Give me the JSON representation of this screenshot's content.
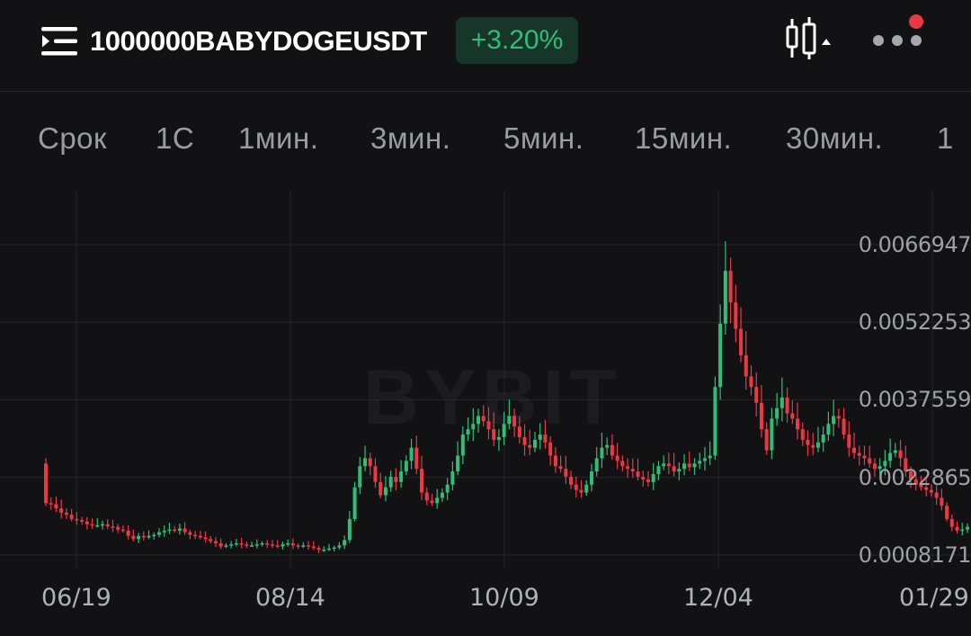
{
  "header": {
    "symbol": "1000000BABYDOGEUSDT",
    "change": "+3.20%",
    "menu_icon": "menu-icon",
    "chart_type_icon": "candlestick-icon",
    "more_icon": "more-dots-icon",
    "notification_color": "#ea3943",
    "up_color": "#2fbd78"
  },
  "timeframes": [
    {
      "label": "Срок"
    },
    {
      "label": "1С"
    },
    {
      "label": "1мин."
    },
    {
      "label": "3мин."
    },
    {
      "label": "5мин."
    },
    {
      "label": "15мин."
    },
    {
      "label": "30мин."
    },
    {
      "label": "1"
    }
  ],
  "chart": {
    "watermark": "BYBIT",
    "price_labels": [
      "0.0066947",
      "0.0052253",
      "0.0037559",
      "0.0022865",
      "0.0008171"
    ],
    "date_labels": [
      "06/19",
      "08/14",
      "10/09",
      "12/04",
      "01/29"
    ],
    "up_color": "#2fbd78",
    "down_color": "#ea3943"
  },
  "chart_data": {
    "type": "candlestick",
    "y_ticks": [
      0.0066947,
      0.0052253,
      0.0037559,
      0.0022865,
      0.0008171
    ],
    "x_ticks": [
      "06/19",
      "08/14",
      "10/09",
      "12/04",
      "01/29"
    ],
    "ylim": [
      0.0004,
      0.0074
    ],
    "grid": true,
    "close_series": [
      0.0018,
      0.00178,
      0.0017,
      0.00162,
      0.00158,
      0.0015,
      0.00148,
      0.00145,
      0.0014,
      0.00138,
      0.00138,
      0.0014,
      0.00136,
      0.00135,
      0.0013,
      0.00128,
      0.00118,
      0.00112,
      0.00118,
      0.00115,
      0.00118,
      0.0012,
      0.00125,
      0.00128,
      0.0013,
      0.00128,
      0.00132,
      0.00125,
      0.0012,
      0.00118,
      0.00115,
      0.00112,
      0.00108,
      0.00104,
      0.00098,
      0.001,
      0.00102,
      0.00104,
      0.00102,
      0.001,
      0.001,
      0.00102,
      0.00104,
      0.00102,
      0.001,
      0.00098,
      0.00102,
      0.00104,
      0.001,
      0.00098,
      0.001,
      0.00098,
      0.00095,
      0.00092,
      0.00092,
      0.00094,
      0.00096,
      0.001,
      0.0011,
      0.0015,
      0.0021,
      0.0025,
      0.00265,
      0.0025,
      0.0022,
      0.00195,
      0.0021,
      0.0023,
      0.0022,
      0.0024,
      0.0026,
      0.00285,
      0.00245,
      0.002,
      0.00185,
      0.0018,
      0.0019,
      0.002,
      0.00215,
      0.0024,
      0.0027,
      0.0031,
      0.0032,
      0.0033,
      0.00345,
      0.00335,
      0.0032,
      0.003,
      0.00305,
      0.0033,
      0.00345,
      0.00325,
      0.00305,
      0.0029,
      0.00285,
      0.003,
      0.0031,
      0.00295,
      0.0027,
      0.0025,
      0.00245,
      0.0023,
      0.00215,
      0.00205,
      0.002,
      0.00215,
      0.0024,
      0.00265,
      0.00285,
      0.0029,
      0.0027,
      0.0026,
      0.0025,
      0.00245,
      0.0024,
      0.0023,
      0.00225,
      0.0022,
      0.00235,
      0.0025,
      0.00255,
      0.0025,
      0.0024,
      0.00245,
      0.00255,
      0.00248,
      0.00255,
      0.0026,
      0.00265,
      0.0027,
      0.004,
      0.0052,
      0.0062,
      0.0056,
      0.0051,
      0.0046,
      0.0042,
      0.004,
      0.0037,
      0.0032,
      0.0028,
      0.0034,
      0.0036,
      0.0038,
      0.0035,
      0.0034,
      0.0032,
      0.003,
      0.0029,
      0.00285,
      0.00295,
      0.0031,
      0.0033,
      0.00345,
      0.0034,
      0.0031,
      0.00285,
      0.00275,
      0.0027,
      0.00265,
      0.00255,
      0.00245,
      0.0025,
      0.0026,
      0.00275,
      0.0028,
      0.00265,
      0.0024,
      0.00225,
      0.00215,
      0.0021,
      0.00205,
      0.002,
      0.0019,
      0.00175,
      0.0015,
      0.00135,
      0.00128,
      0.0013,
      0.00135
    ]
  }
}
